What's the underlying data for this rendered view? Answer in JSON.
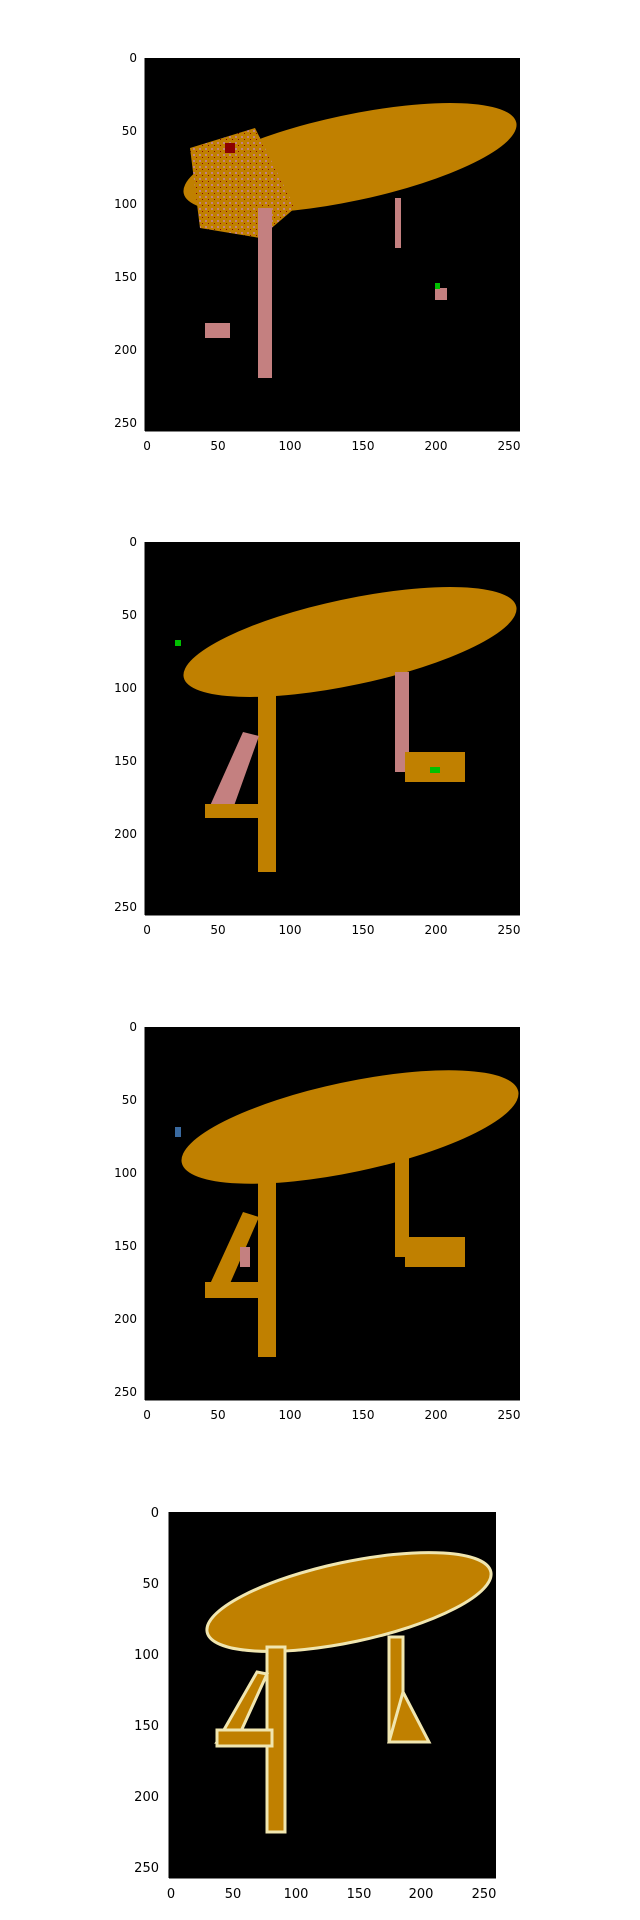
{
  "panels": [
    {
      "id": "pred-1",
      "x_ticks": [
        "0",
        "50",
        "100",
        "150",
        "200",
        "250"
      ],
      "y_ticks": [
        "0",
        "50",
        "100",
        "150",
        "200",
        "250"
      ],
      "colors": {
        "background": "#000000",
        "primary": "#c08000",
        "secondary": "#c48080",
        "noise": [
          "#8b0000",
          "#00c000",
          "#3a3a8a",
          "#808080"
        ]
      }
    },
    {
      "id": "pred-2",
      "x_ticks": [
        "0",
        "50",
        "100",
        "150",
        "200",
        "250"
      ],
      "y_ticks": [
        "0",
        "50",
        "100",
        "150",
        "200",
        "250"
      ],
      "colors": {
        "background": "#000000",
        "primary": "#c08000",
        "secondary": "#c48080",
        "noise": [
          "#8b0000",
          "#00c000",
          "#3a3a8a",
          "#808080"
        ]
      }
    },
    {
      "id": "pred-3",
      "x_ticks": [
        "0",
        "50",
        "100",
        "150",
        "200",
        "250"
      ],
      "y_ticks": [
        "0",
        "50",
        "100",
        "150",
        "200",
        "250"
      ],
      "colors": {
        "background": "#000000",
        "primary": "#c08000",
        "secondary": "#c48080",
        "noise": [
          "#8b0000",
          "#00c000",
          "#3a6aa0",
          "#808080"
        ]
      }
    },
    {
      "id": "ground-truth",
      "x_ticks": [
        "0",
        "50",
        "100",
        "150",
        "200",
        "250"
      ],
      "y_ticks": [
        "0",
        "50",
        "100",
        "150",
        "200",
        "250"
      ],
      "colors": {
        "background": "#000000",
        "primary": "#c08000",
        "outline": "#f0e6b0"
      }
    }
  ]
}
